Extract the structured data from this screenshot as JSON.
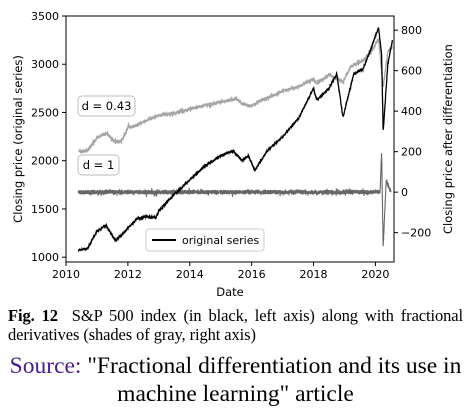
{
  "chart_data": {
    "type": "line",
    "xlabel": "Date",
    "ylabel_left": "Closing price (original series)",
    "ylabel_right": "Closing price after differentiation",
    "x_ticks": [
      "2010",
      "2012",
      "2014",
      "2016",
      "2018",
      "2020"
    ],
    "x_range": [
      2010,
      2020.6
    ],
    "y_left_ticks": [
      "1000",
      "1500",
      "2000",
      "2500",
      "3000",
      "3500"
    ],
    "y_left_range": [
      950,
      3500
    ],
    "y_right_ticks": [
      "−200",
      "0",
      "200",
      "400",
      "600",
      "800"
    ],
    "y_right_range": [
      -345,
      870
    ],
    "legend_label": "original series",
    "legend_position": "lower-right",
    "grid": false,
    "series_labels": [
      "d = 0.43",
      "d = 1"
    ],
    "colors": {
      "original": "#000000",
      "d043": "#a5a5a5",
      "d1": "#666666",
      "source": "#4b1a8c"
    },
    "series": [
      {
        "name": "original series",
        "axis": "left",
        "x": [
          2010.4,
          2010.7,
          2011.0,
          2011.3,
          2011.6,
          2011.8,
          2012.0,
          2012.3,
          2012.6,
          2012.9,
          2013.0,
          2013.5,
          2014.0,
          2014.5,
          2015.0,
          2015.4,
          2015.7,
          2015.9,
          2016.1,
          2016.5,
          2017.0,
          2017.5,
          2018.0,
          2018.1,
          2018.5,
          2018.75,
          2018.95,
          2019.3,
          2019.6,
          2019.9,
          2020.1,
          2020.2,
          2020.25,
          2020.4,
          2020.55
        ],
        "y": [
          1070,
          1090,
          1270,
          1330,
          1170,
          1230,
          1300,
          1400,
          1420,
          1410,
          1480,
          1650,
          1800,
          1950,
          2050,
          2100,
          2000,
          2050,
          1900,
          2100,
          2250,
          2430,
          2750,
          2630,
          2750,
          2900,
          2450,
          2900,
          2950,
          3200,
          3380,
          3100,
          2300,
          3000,
          3250
        ]
      },
      {
        "name": "d = 0.43",
        "axis": "right",
        "x": [
          2010.4,
          2010.7,
          2011.0,
          2011.3,
          2011.6,
          2011.8,
          2012.0,
          2012.3,
          2012.6,
          2013.0,
          2013.5,
          2014.0,
          2014.5,
          2015.0,
          2015.5,
          2015.7,
          2016.0,
          2016.3,
          2016.6,
          2017.0,
          2017.5,
          2018.0,
          2018.1,
          2018.5,
          2018.95,
          2019.2,
          2019.6,
          2019.9,
          2020.1,
          2020.25,
          2020.4,
          2020.55
        ],
        "y": [
          200,
          205,
          270,
          290,
          250,
          250,
          320,
          330,
          355,
          380,
          390,
          410,
          430,
          445,
          460,
          435,
          425,
          455,
          470,
          500,
          520,
          560,
          535,
          580,
          545,
          620,
          650,
          700,
          760,
          520,
          690,
          720
        ]
      },
      {
        "name": "d = 1",
        "axis": "right",
        "x": [
          2010.4,
          2010.6,
          2011.0,
          2011.6,
          2012.0,
          2013.0,
          2014.0,
          2015.0,
          2015.7,
          2016.0,
          2017.0,
          2018.0,
          2018.1,
          2018.95,
          2019.5,
          2020.15,
          2020.2,
          2020.25,
          2020.35,
          2020.5
        ],
        "y": [
          0,
          0,
          0,
          0,
          0,
          0,
          0,
          0,
          0,
          0,
          0,
          0,
          0,
          0,
          0,
          0,
          200,
          -270,
          60,
          0
        ]
      }
    ]
  },
  "caption": {
    "fig_label": "Fig. 12",
    "text": "S&P 500 index (in black, left axis) along with fractional derivatives (shades of gray, right axis)"
  },
  "source": {
    "label": "Source:",
    "text": "\"Fractional differentiation and its use in machine learning\" article"
  }
}
